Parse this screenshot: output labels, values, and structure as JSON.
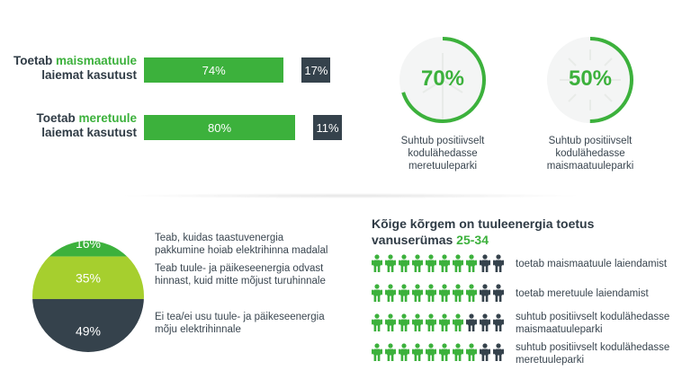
{
  "bars": [
    {
      "label_pre": "Toetab ",
      "label_hl": "maismaatuule",
      "label_line2": "laiemat kasutust",
      "support": 74,
      "support_label": "74%",
      "against": 17,
      "against_label": "17%"
    },
    {
      "label_pre": "Toetab ",
      "label_hl": "meretuule",
      "label_line2": "laiemat kasutust",
      "support": 80,
      "support_label": "80%",
      "against": 11,
      "against_label": "11%"
    }
  ],
  "rings": [
    {
      "value": 70,
      "label": "70%",
      "text_lines": [
        "Suhtub positiivselt",
        "kodulähedasse",
        "meretuuleparki"
      ]
    },
    {
      "value": 50,
      "label": "50%",
      "text_lines": [
        "Suhtub positiivselt",
        "kodulähedasse",
        "maismaatuuleparki"
      ]
    }
  ],
  "pie": {
    "segments": [
      {
        "value": 16,
        "label": "16%",
        "color": "#3cb13c",
        "text_lines": [
          "Teab, kuidas taastuvenergia",
          "pakkumine hoiab elektrihinna madalal"
        ]
      },
      {
        "value": 35,
        "label": "35%",
        "color": "#a6cf2e",
        "text_lines": [
          "Teab tuule- ja päikeseenergia odvast",
          "hinnast, kuid mitte mõjust turuhinnale"
        ]
      },
      {
        "value": 49,
        "label": "49%",
        "color": "#35424c",
        "text_lines": [
          "Ei tea/ei usu tuule- ja päikeseenergia",
          "mõju elektrihinnale"
        ]
      }
    ]
  },
  "age_section": {
    "title_line1": "Kõige kõrgem on tuuleenergia toetus",
    "title_line2_pre": "vanuserümas ",
    "title_line2_hl": "25-34",
    "rows": [
      {
        "green": 8,
        "total": 10,
        "text_lines": [
          "toetab maismaatuule laiendamist"
        ]
      },
      {
        "green": 8,
        "total": 10,
        "text_lines": [
          "toetab meretuule laiendamist"
        ]
      },
      {
        "green": 7,
        "total": 10,
        "text_lines": [
          "suhtub positiivselt kodulähedasse",
          "maismaatuuleparki"
        ]
      },
      {
        "green": 8,
        "total": 10,
        "text_lines": [
          "suhtub positiivselt kodulähedasse",
          "meretuuleparki"
        ]
      }
    ]
  },
  "colors": {
    "green": "#3cb13c",
    "dark": "#35424c",
    "lime": "#a6cf2e",
    "light_gray": "#f1f2f2"
  },
  "chart_data": [
    {
      "type": "bar",
      "categories": [
        "Toetab maismaatuule laiemat kasutust",
        "Toetab meretuule laiemat kasutust"
      ],
      "series": [
        {
          "values": [
            74,
            80
          ]
        },
        {
          "values": [
            17,
            11
          ]
        }
      ]
    },
    {
      "type": "pie",
      "categories": [
        "Suhtub positiivselt kodulähedasse meretuuleparki"
      ],
      "values": [
        70
      ]
    },
    {
      "type": "pie",
      "categories": [
        "Suhtub positiivselt kodulähedasse maismaatuuleparki"
      ],
      "values": [
        50
      ]
    },
    {
      "type": "pie",
      "categories": [
        "Teab, kuidas taastuvenergia pakkumine hoiab elektrihinna madalal",
        "Teab tuule- ja päikeseenergia odvast hinnast, kuid mitte mõjust turuhinnale",
        "Ei tea/ei usu tuule- ja päikeseenergia mõju elektrihinnale"
      ],
      "values": [
        16,
        35,
        49
      ]
    }
  ]
}
